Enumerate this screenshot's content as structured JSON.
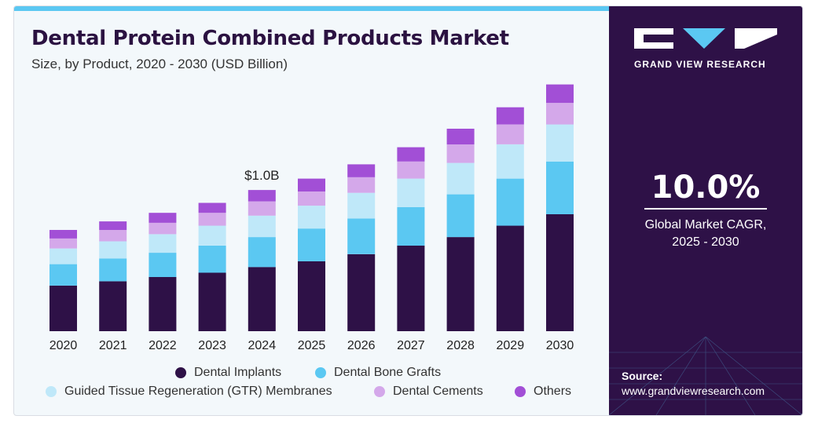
{
  "header": {
    "title": "Dental Protein Combined Products Market",
    "subtitle": "Size, by Product, 2020 - 2030 (USD Billion)"
  },
  "chart_data": {
    "type": "bar",
    "stacked": true,
    "categories": [
      "2020",
      "2021",
      "2022",
      "2023",
      "2024",
      "2025",
      "2026",
      "2027",
      "2028",
      "2029",
      "2030"
    ],
    "series": [
      {
        "name": "Dental Implants",
        "color": "#2e1147",
        "values": [
          0.32,
          0.35,
          0.38,
          0.41,
          0.45,
          0.49,
          0.54,
          0.6,
          0.66,
          0.74,
          0.82
        ]
      },
      {
        "name": "Dental Bone Grafts",
        "color": "#5bc8f2",
        "values": [
          0.15,
          0.16,
          0.17,
          0.19,
          0.21,
          0.23,
          0.25,
          0.27,
          0.3,
          0.33,
          0.37
        ]
      },
      {
        "name": "Guided Tissue Regeneration (GTR) Membranes",
        "color": "#bfe8f9",
        "values": [
          0.11,
          0.12,
          0.13,
          0.14,
          0.15,
          0.16,
          0.18,
          0.2,
          0.22,
          0.24,
          0.26
        ]
      },
      {
        "name": "Dental Cements",
        "color": "#d4a8ea",
        "values": [
          0.07,
          0.08,
          0.08,
          0.09,
          0.1,
          0.1,
          0.11,
          0.12,
          0.13,
          0.14,
          0.15
        ]
      },
      {
        "name": "Others",
        "color": "#a24fd6",
        "values": [
          0.06,
          0.06,
          0.07,
          0.07,
          0.08,
          0.09,
          0.09,
          0.1,
          0.11,
          0.12,
          0.13
        ]
      }
    ],
    "annotation": {
      "category": "2024",
      "label": "$1.0B"
    },
    "ylim": [
      0,
      1.75
    ],
    "grid": false,
    "legend": "bottom"
  },
  "sidebar": {
    "brand": "GRAND VIEW RESEARCH",
    "cagr_value": "10.0%",
    "cagr_label_line1": "Global Market CAGR,",
    "cagr_label_line2": "2025 - 2030",
    "source_label": "Source:",
    "source_url": "www.grandviewresearch.com"
  }
}
